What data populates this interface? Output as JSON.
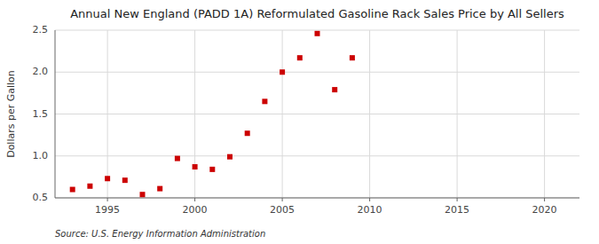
{
  "chart_data": {
    "type": "scatter",
    "title": "Annual New England (PADD 1A) Reformulated Gasoline Rack Sales Price by All Sellers",
    "y_label": "Dollars per Gallon",
    "source": "Source: U.S. Energy Information Administration",
    "x": [
      1993,
      1994,
      1995,
      1996,
      1997,
      1998,
      1999,
      2000,
      2001,
      2002,
      2003,
      2004,
      2005,
      2006,
      2007,
      2008,
      2009
    ],
    "values": [
      0.6,
      0.64,
      0.73,
      0.71,
      0.54,
      0.61,
      0.97,
      0.87,
      0.84,
      0.99,
      1.27,
      1.65,
      2.0,
      2.17,
      2.46,
      1.79,
      2.17
    ],
    "color": "#cc0000",
    "marker": "square",
    "xlim": [
      1992,
      2022
    ],
    "ylim": [
      0.5,
      2.5
    ],
    "xticks": [
      1995,
      2000,
      2005,
      2010,
      2015,
      2020
    ],
    "yticks": [
      0.5,
      {
        "value": 1.0,
        "label": "1.0"
      },
      1.5,
      {
        "value": 2.0,
        "label": "2.0"
      },
      2.5
    ],
    "grid": true
  }
}
